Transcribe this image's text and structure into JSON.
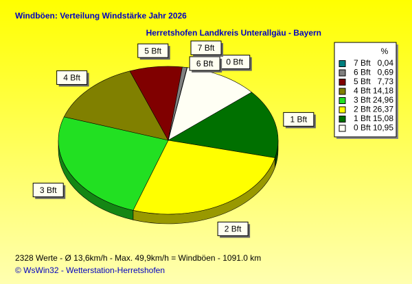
{
  "chart_data": {
    "type": "pie",
    "title": "Windböen: Verteilung Windstärke  Jahr 2026",
    "subtitle": "Herretshofen Landkreis Unterallgäu - Bayern",
    "legend_title": "%",
    "categories": [
      "7 Bft",
      "6 Bft",
      "5 Bft",
      "4 Bft",
      "3 Bft",
      "2 Bft",
      "1 Bft",
      "0 Bft"
    ],
    "values": [
      0.04,
      0.69,
      7.73,
      14.18,
      24.96,
      26.37,
      15.08,
      10.95
    ],
    "value_labels": [
      "0,04",
      "0,69",
      "7,73",
      "14,18",
      "24,96",
      "26,37",
      "15,08",
      "10,95"
    ],
    "colors": [
      "#008080",
      "#808080",
      "#800000",
      "#808000",
      "#22e022",
      "#ffff00",
      "#007000",
      "#fffff4"
    ],
    "footer": "2328 Werte    -   Ø 13,6km/h  -  Max. 49,9km/h = Windböen   -    1091.0 km",
    "credit": "© WsWin32  -  Wetterstation-Herretshofen"
  }
}
